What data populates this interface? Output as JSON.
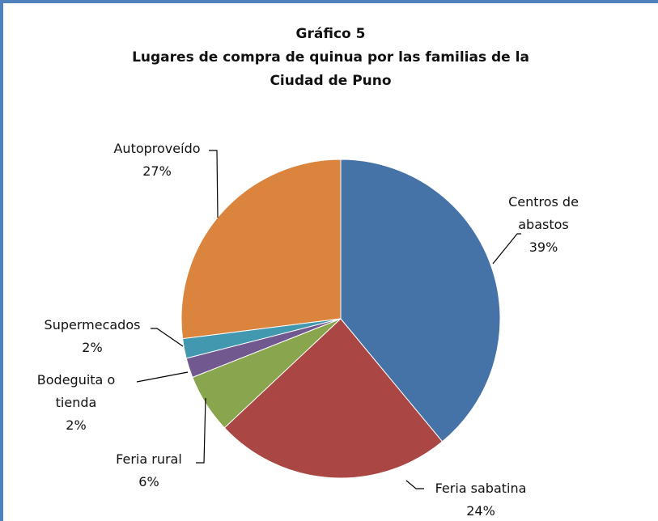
{
  "chart_data": {
    "type": "pie",
    "title": [
      "Gráfico  5",
      "Lugares de compra de  quinua  por las familias  de la",
      "Ciudad  de Puno"
    ],
    "categories": [
      "Centros de abastos",
      "Feria sabatina",
      "Feria rural",
      "Bodeguita o tienda",
      "Supermecados",
      "Autoproveído"
    ],
    "values": [
      39,
      24,
      6,
      2,
      2,
      27
    ],
    "value_labels": [
      "39%",
      "24%",
      "6%",
      "2%",
      "2%",
      "27%"
    ],
    "colors": [
      "#4572a7",
      "#aa4643",
      "#89a54e",
      "#71588f",
      "#4198af",
      "#db843d"
    ]
  }
}
